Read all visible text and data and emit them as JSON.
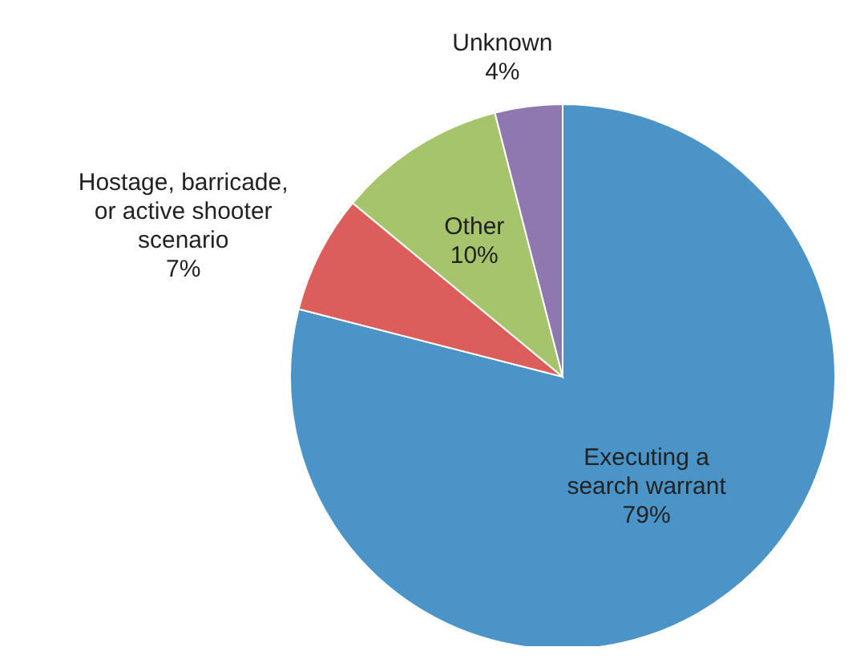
{
  "chart_data": {
    "type": "pie",
    "categories": [
      "Executing a search warrant",
      "Hostage, barricade, or active shooter scenario",
      "Other",
      "Unknown"
    ],
    "values": [
      79,
      7,
      10,
      4
    ],
    "colors": [
      "#4a94c8",
      "#dc5e5a",
      "#a6c46c",
      "#8f78b0"
    ],
    "value_labels": [
      "79%",
      "7%",
      "10%",
      "4%"
    ],
    "legend": false
  }
}
